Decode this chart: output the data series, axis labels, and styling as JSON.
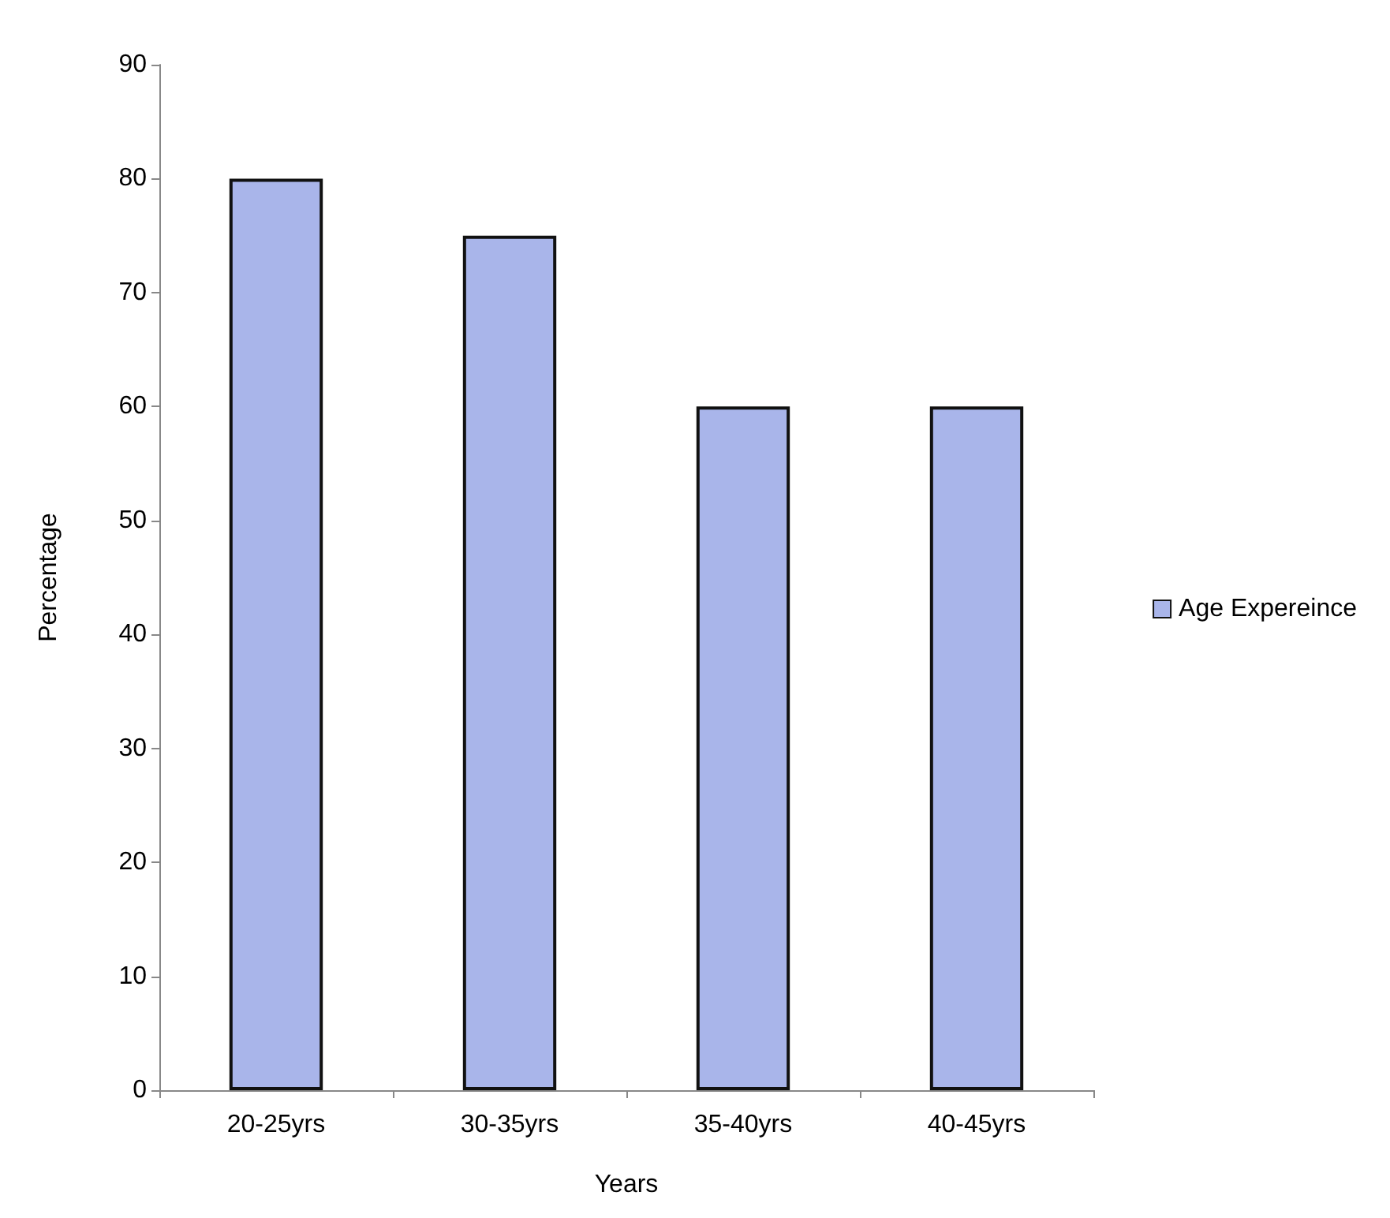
{
  "chart_data": {
    "type": "bar",
    "xlabel": "Years",
    "ylabel": "Percentage",
    "categories": [
      "20-25yrs",
      "30-35yrs",
      "35-40yrs",
      "40-45yrs"
    ],
    "series": [
      {
        "name": "Age Expereince",
        "color": "#a9b5ea",
        "values": [
          80,
          75,
          60,
          60
        ]
      }
    ],
    "ylim": [
      0,
      90
    ],
    "yticks": [
      0,
      10,
      20,
      30,
      40,
      50,
      60,
      70,
      80,
      90
    ],
    "grid": false,
    "legend": "right"
  }
}
